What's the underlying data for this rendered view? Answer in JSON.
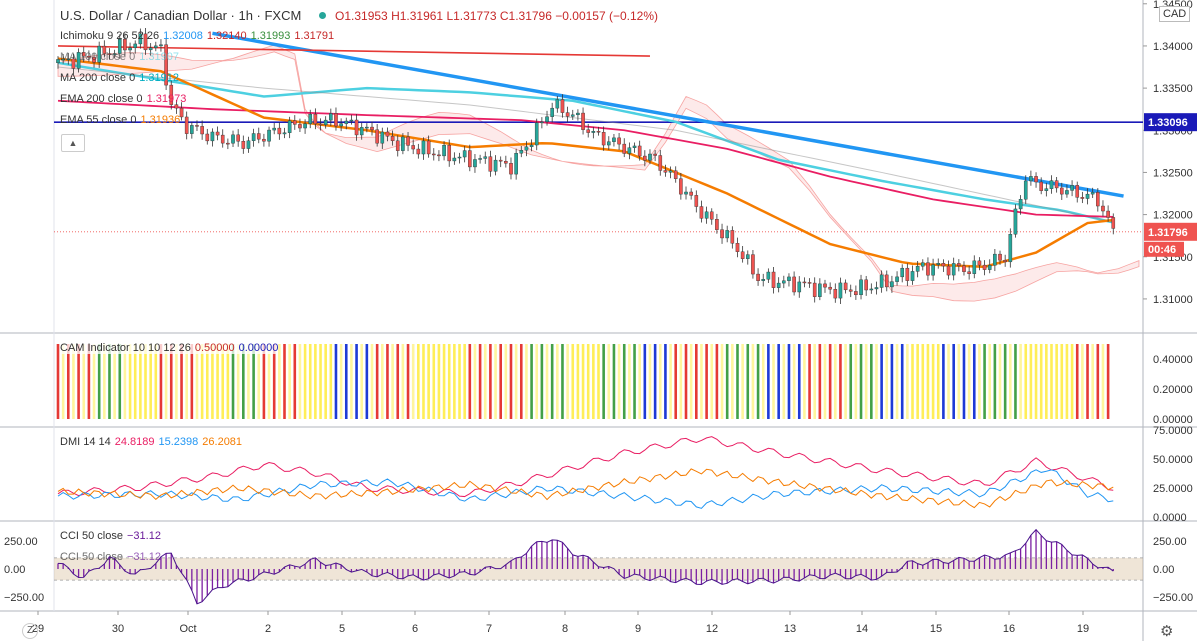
{
  "header": {
    "symbol": "U.S. Dollar / Canadian Dollar · 1h · FXCM",
    "open": "O1.31953",
    "high": "H1.31961",
    "low": "L1.31773",
    "close": "C1.31796",
    "change": "−0.00157 (−0.12%)",
    "currency": "CAD"
  },
  "legend": {
    "ichimoku": {
      "label": "Ichimoku 9 26 52 26",
      "v1": "1.32008",
      "v2": "1.32140",
      "v3": "1.31993",
      "v4": "1.31791"
    },
    "ma100": {
      "label": "MA 100 close 0",
      "v": "1.31907"
    },
    "ma200": {
      "label": "MA 200 close 0",
      "v": "1.31912"
    },
    "ema200": {
      "label": "EMA 200 close 0",
      "v": "1.31973"
    },
    "ema55": {
      "label": "EMA 55 close 0",
      "v": "1.31936"
    },
    "cam": {
      "label": "CAM Indicator 10 10 12 26",
      "v1": "0.50000",
      "v2": "0.00000"
    },
    "dmi": {
      "label": "DMI 14 14",
      "v1": "24.8189",
      "v2": "15.2398",
      "v3": "26.2081"
    },
    "cci1": {
      "label": "CCI 50 close",
      "v": "−31.12"
    },
    "cci2": {
      "label": "CCI 50 close",
      "v": "−31.12"
    }
  },
  "price_tags": {
    "level": "1.33096",
    "last": "1.31796",
    "countdown": "00:46"
  },
  "bottom": {
    "z": "Z",
    "gear": "gear-icon"
  },
  "colors": {
    "up": "#26a69a",
    "down": "#ef5350",
    "trend": "#2196f3",
    "hline": "#1a1ab8",
    "ma100": "#4dd0e1",
    "ema200": "#e91e63",
    "ema55": "#f57c00",
    "dmi_plus": "#e91e63",
    "dmi_minus": "#2196f3",
    "adx": "#f57c00",
    "cci": "#6a1b9a"
  },
  "chart_data": [
    {
      "type": "candlestick",
      "x_ticks": [
        "29",
        "30",
        "Oct",
        "2",
        "5",
        "6",
        "7",
        "8",
        "9",
        "12",
        "13",
        "14",
        "15",
        "16",
        "19"
      ],
      "y_ticks": [
        "1.34500",
        "1.34000",
        "1.33500",
        "1.33000",
        "1.32500",
        "1.32000",
        "1.31500",
        "1.31000"
      ],
      "ylim": [
        1.3075,
        1.3445
      ],
      "horizontal_level": 1.33096,
      "last_price": 1.31796,
      "close_path": [
        [
          0,
          1.338
        ],
        [
          8,
          1.339
        ],
        [
          16,
          1.3405
        ],
        [
          20,
          1.3395
        ],
        [
          22,
          1.333
        ],
        [
          25,
          1.3305
        ],
        [
          30,
          1.3292
        ],
        [
          36,
          1.3285
        ],
        [
          42,
          1.3298
        ],
        [
          48,
          1.331
        ],
        [
          54,
          1.3312
        ],
        [
          60,
          1.33
        ],
        [
          66,
          1.3285
        ],
        [
          72,
          1.3275
        ],
        [
          78,
          1.3268
        ],
        [
          84,
          1.3262
        ],
        [
          88,
          1.3258
        ],
        [
          92,
          1.329
        ],
        [
          96,
          1.333
        ],
        [
          100,
          1.3318
        ],
        [
          104,
          1.3295
        ],
        [
          108,
          1.3285
        ],
        [
          112,
          1.3275
        ],
        [
          116,
          1.3265
        ],
        [
          120,
          1.324
        ],
        [
          124,
          1.321
        ],
        [
          128,
          1.3185
        ],
        [
          132,
          1.316
        ],
        [
          136,
          1.3125
        ],
        [
          140,
          1.312
        ],
        [
          144,
          1.3118
        ],
        [
          148,
          1.3112
        ],
        [
          152,
          1.311
        ],
        [
          156,
          1.3112
        ],
        [
          160,
          1.3118
        ],
        [
          164,
          1.3128
        ],
        [
          168,
          1.3138
        ],
        [
          172,
          1.3138
        ],
        [
          176,
          1.3135
        ],
        [
          180,
          1.314
        ],
        [
          184,
          1.315
        ],
        [
          186,
          1.32
        ],
        [
          188,
          1.3245
        ],
        [
          190,
          1.3235
        ],
        [
          194,
          1.3232
        ],
        [
          198,
          1.3225
        ],
        [
          202,
          1.3218
        ],
        [
          205,
          1.31796
        ]
      ],
      "series": [
        {
          "name": "MA 100 close 0",
          "values": [
            [
              0,
              1.338
            ],
            [
              20,
              1.336
            ],
            [
              40,
              1.334
            ],
            [
              60,
              1.335
            ],
            [
              80,
              1.3345
            ],
            [
              100,
              1.3335
            ],
            [
              120,
              1.331
            ],
            [
              140,
              1.3265
            ],
            [
              160,
              1.324
            ],
            [
              180,
              1.3218
            ],
            [
              195,
              1.3205
            ],
            [
              205,
              1.31907
            ]
          ]
        },
        {
          "name": "MA 200 close 0",
          "values": [
            [
              0,
              1.3375
            ],
            [
              40,
              1.335
            ],
            [
              80,
              1.333
            ],
            [
              120,
              1.33
            ],
            [
              160,
              1.325
            ],
            [
              205,
              1.31912
            ]
          ]
        },
        {
          "name": "EMA 200 close 0",
          "values": [
            [
              0,
              1.3335
            ],
            [
              30,
              1.3325
            ],
            [
              60,
              1.3318
            ],
            [
              90,
              1.3312
            ],
            [
              110,
              1.33
            ],
            [
              130,
              1.3278
            ],
            [
              150,
              1.3245
            ],
            [
              170,
              1.3218
            ],
            [
              190,
              1.32
            ],
            [
              205,
              1.31973
            ]
          ]
        },
        {
          "name": "EMA 55 close 0",
          "values": [
            [
              0,
              1.3385
            ],
            [
              20,
              1.337
            ],
            [
              40,
              1.3315
            ],
            [
              60,
              1.33
            ],
            [
              80,
              1.328
            ],
            [
              95,
              1.3285
            ],
            [
              110,
              1.3275
            ],
            [
              130,
              1.3225
            ],
            [
              150,
              1.3165
            ],
            [
              165,
              1.3142
            ],
            [
              180,
              1.3138
            ],
            [
              190,
              1.3155
            ],
            [
              200,
              1.319
            ],
            [
              205,
              1.31936
            ]
          ]
        },
        {
          "name": "trendline_blue",
          "values": [
            [
              30,
              1.3415
            ],
            [
              207,
              1.3222
            ]
          ]
        },
        {
          "name": "trendline_red",
          "values": [
            [
              0,
              1.34
            ],
            [
              115,
              1.3388
            ]
          ]
        }
      ]
    },
    {
      "type": "bar",
      "name": "CAM Indicator 10 10 12 26",
      "ylim": [
        0,
        0.5
      ],
      "y_ticks": [
        "0.40000",
        "0.20000",
        "0.00000"
      ],
      "blocks": [
        [
          0,
          8,
          "r"
        ],
        [
          8,
          14,
          "g"
        ],
        [
          14,
          20,
          "y"
        ],
        [
          20,
          28,
          "r"
        ],
        [
          28,
          34,
          "y"
        ],
        [
          34,
          40,
          "g"
        ],
        [
          40,
          48,
          "r"
        ],
        [
          48,
          54,
          "y"
        ],
        [
          54,
          62,
          "b"
        ],
        [
          62,
          70,
          "r"
        ],
        [
          70,
          80,
          "y"
        ],
        [
          80,
          92,
          "r"
        ],
        [
          92,
          100,
          "g"
        ],
        [
          100,
          106,
          "y"
        ],
        [
          106,
          114,
          "g"
        ],
        [
          114,
          120,
          "b"
        ],
        [
          120,
          130,
          "r"
        ],
        [
          130,
          138,
          "g"
        ],
        [
          138,
          146,
          "b"
        ],
        [
          146,
          154,
          "r"
        ],
        [
          154,
          160,
          "g"
        ],
        [
          160,
          166,
          "b"
        ],
        [
          166,
          172,
          "y"
        ],
        [
          172,
          180,
          "b"
        ],
        [
          180,
          188,
          "g"
        ],
        [
          188,
          198,
          "y"
        ],
        [
          198,
          205,
          "r"
        ]
      ]
    },
    {
      "type": "line",
      "name": "DMI 14 14",
      "ylim": [
        0,
        75
      ],
      "y_ticks": [
        "75.0000",
        "50.0000",
        "25.0000",
        "0.0000"
      ],
      "series": [
        {
          "name": "+DI",
          "values": [
            [
              0,
              20
            ],
            [
              15,
              25
            ],
            [
              30,
              35
            ],
            [
              40,
              45
            ],
            [
              50,
              38
            ],
            [
              60,
              25
            ],
            [
              80,
              20
            ],
            [
              90,
              30
            ],
            [
              110,
              55
            ],
            [
              125,
              68
            ],
            [
              140,
              55
            ],
            [
              160,
              40
            ],
            [
              180,
              28
            ],
            [
              190,
              48
            ],
            [
              205,
              25
            ]
          ]
        },
        {
          "name": "-DI",
          "values": [
            [
              0,
              18
            ],
            [
              20,
              20
            ],
            [
              35,
              15
            ],
            [
              50,
              28
            ],
            [
              65,
              30
            ],
            [
              80,
              15
            ],
            [
              95,
              25
            ],
            [
              110,
              18
            ],
            [
              125,
              10
            ],
            [
              140,
              20
            ],
            [
              160,
              25
            ],
            [
              180,
              20
            ],
            [
              192,
              42
            ],
            [
              200,
              20
            ],
            [
              205,
              15
            ]
          ]
        },
        {
          "name": "ADX",
          "values": [
            [
              0,
              22
            ],
            [
              20,
              18
            ],
            [
              35,
              25
            ],
            [
              50,
              18
            ],
            [
              65,
              22
            ],
            [
              80,
              28
            ],
            [
              95,
              18
            ],
            [
              110,
              30
            ],
            [
              125,
              40
            ],
            [
              140,
              30
            ],
            [
              160,
              18
            ],
            [
              180,
              10
            ],
            [
              192,
              30
            ],
            [
              205,
              26
            ]
          ]
        }
      ]
    },
    {
      "type": "bar",
      "name": "CCI 50 close",
      "ylim": [
        -350,
        350
      ],
      "y_ticks": [
        "250.00",
        "0.00",
        "−250.00"
      ],
      "values": [
        [
          0,
          50
        ],
        [
          5,
          -80
        ],
        [
          10,
          100
        ],
        [
          15,
          -60
        ],
        [
          22,
          150
        ],
        [
          27,
          -300
        ],
        [
          32,
          -150
        ],
        [
          40,
          -50
        ],
        [
          50,
          80
        ],
        [
          60,
          -40
        ],
        [
          70,
          -80
        ],
        [
          80,
          -40
        ],
        [
          88,
          50
        ],
        [
          92,
          200
        ],
        [
          96,
          280
        ],
        [
          100,
          150
        ],
        [
          110,
          -60
        ],
        [
          125,
          -120
        ],
        [
          140,
          -100
        ],
        [
          150,
          -60
        ],
        [
          160,
          -80
        ],
        [
          165,
          50
        ],
        [
          175,
          80
        ],
        [
          185,
          120
        ],
        [
          190,
          330
        ],
        [
          195,
          200
        ],
        [
          200,
          80
        ],
        [
          205,
          -31
        ]
      ]
    }
  ]
}
